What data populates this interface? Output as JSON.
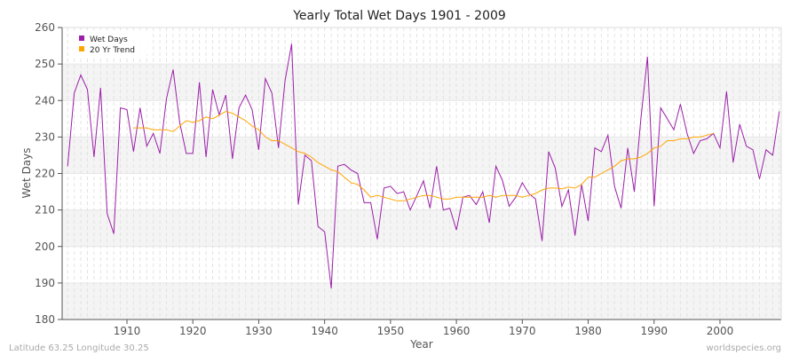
{
  "chart_data": {
    "type": "line",
    "title": "Yearly Total Wet Days 1901 - 2009",
    "xlabel": "Year",
    "ylabel": "Wet Days",
    "ylim": [
      180,
      260
    ],
    "xlim": [
      1901,
      2009
    ],
    "yticks": [
      180,
      190,
      200,
      210,
      220,
      230,
      240,
      250,
      260
    ],
    "xticks": [
      1910,
      1920,
      1930,
      1940,
      1950,
      1960,
      1970,
      1980,
      1990,
      2000
    ],
    "grid": true,
    "legend_position": "top-left",
    "series": [
      {
        "name": "Wet Days",
        "color": "#9b1fa8",
        "start_year": 1901,
        "values": [
          222,
          242,
          247,
          243,
          224.5,
          243.5,
          209,
          203.5,
          238,
          237.5,
          226,
          238,
          227.5,
          231,
          225.5,
          240.5,
          248.5,
          234,
          225.5,
          225.5,
          245,
          224.5,
          243,
          236,
          241.5,
          224,
          238,
          241.5,
          237.5,
          226.5,
          246,
          242,
          227,
          245.5,
          255.5,
          211.5,
          225,
          223.5,
          205.5,
          204,
          188.5,
          222,
          222.5,
          221,
          220,
          212,
          212,
          202,
          216,
          216.5,
          214.5,
          215,
          210,
          214,
          218,
          210.5,
          222,
          210,
          210.5,
          204.5,
          213.5,
          214,
          211.5,
          215,
          206.5,
          222,
          218,
          211,
          213.5,
          217.5,
          214.5,
          213,
          201.5,
          226,
          221.5,
          211,
          215.5,
          203,
          217,
          207,
          227,
          226,
          230.5,
          216.5,
          210.5,
          227,
          215,
          235,
          252,
          211,
          238,
          235,
          232,
          239,
          231,
          225.5,
          229,
          229.5,
          231,
          227,
          242.5,
          223,
          233.5,
          227.5,
          226.5,
          218.5,
          226.5,
          225,
          237
        ]
      },
      {
        "name": "20 Yr Trend",
        "color": "#ffa500",
        "start_year": 1911,
        "values": [
          232.5,
          232.5,
          232.5,
          232,
          232,
          232,
          231.5,
          233,
          234.5,
          234,
          234.5,
          235.5,
          235,
          236,
          237,
          236.5,
          235.5,
          234.5,
          233,
          232,
          230,
          229,
          229,
          228,
          227,
          226,
          225.5,
          224.5,
          223,
          222,
          221,
          220.5,
          219,
          217.5,
          217,
          215.5,
          213.5,
          214,
          213.5,
          213,
          212.5,
          212.5,
          213,
          213.5,
          214,
          214,
          213.5,
          213,
          213,
          213.5,
          213.5,
          213.5,
          213.5,
          213.5,
          214,
          213.5,
          214,
          214,
          214,
          213.5,
          214,
          214.5,
          215.5,
          216,
          216,
          215.8,
          216.3,
          216,
          217,
          219,
          219,
          220,
          221,
          222,
          223.5,
          224,
          224,
          224.5,
          225.5,
          227,
          227.5,
          229,
          229,
          229.5,
          229.5,
          230,
          230,
          230.5,
          231
        ]
      }
    ]
  },
  "footer": {
    "location": "Latitude 63.25 Longitude 30.25",
    "credit": "worldspecies.org"
  }
}
